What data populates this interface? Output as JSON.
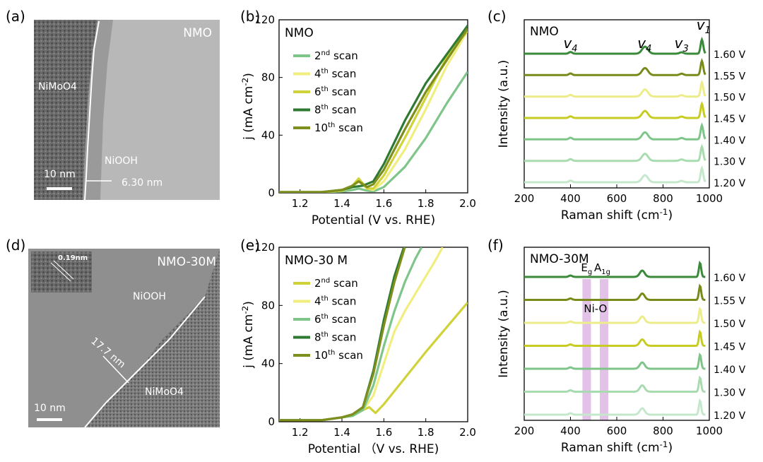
{
  "panels": {
    "a": {
      "label": "(a)",
      "title": "NMO",
      "scale_bar": "10 nm",
      "labels": [
        "NiMoO4",
        "NiOOH",
        "6.30 nm"
      ]
    },
    "d": {
      "label": "(d)",
      "title": "NMO-30M",
      "scale_bar": "10 nm",
      "inset_label": "0.19nm",
      "labels": [
        "NiOOH",
        "17.7 nm",
        "NiMoO4"
      ]
    }
  },
  "colors": {
    "c2": "#7fc58a",
    "c4": "#f0ee7e",
    "c6": "#d0d23a",
    "c8": "#2f7a32",
    "c10": "#7f8f1e",
    "c120": "#c5e8cc",
    "c130": "#a8dbb0",
    "c140": "#7fc58a",
    "c145": "#c7cc22",
    "c150": "#ecec8a",
    "c155": "#7a8a1a",
    "c160": "#3a8a3a",
    "band": "#e3c2e8"
  },
  "chart_data": [
    {
      "id": "b",
      "panel_label": "(b)",
      "type": "line",
      "inset_title": "NMO",
      "xlabel": "Potential (V vs. RHE)",
      "ylabel": "j (mA cm-2)",
      "xlim": [
        1.1,
        2.0
      ],
      "ylim": [
        0,
        120
      ],
      "xticks": [
        "1.2",
        "1.4",
        "1.6",
        "1.8",
        "2.0"
      ],
      "yticks": [
        "0",
        "40",
        "80",
        "120"
      ],
      "series": [
        {
          "name": "2nd scan",
          "color": "c2",
          "x": [
            1.1,
            1.3,
            1.4,
            1.45,
            1.48,
            1.52,
            1.55,
            1.6,
            1.7,
            1.8,
            1.9,
            2.0
          ],
          "y": [
            0.5,
            0.5,
            1,
            2,
            3,
            1.5,
            1,
            4,
            18,
            38,
            62,
            84
          ]
        },
        {
          "name": "4th scan",
          "color": "c4",
          "x": [
            1.1,
            1.3,
            1.4,
            1.45,
            1.48,
            1.52,
            1.55,
            1.6,
            1.7,
            1.8,
            1.9,
            1.95,
            2.0
          ],
          "y": [
            0.5,
            0.5,
            1.5,
            4,
            8,
            3,
            2,
            8,
            30,
            58,
            88,
            100,
            113
          ]
        },
        {
          "name": "6th scan",
          "color": "c6",
          "x": [
            1.1,
            1.3,
            1.4,
            1.45,
            1.48,
            1.52,
            1.55,
            1.6,
            1.7,
            1.8,
            1.9,
            1.95,
            2.0
          ],
          "y": [
            0.5,
            0.5,
            1.5,
            5,
            10,
            3,
            3,
            12,
            38,
            66,
            94,
            104,
            112
          ]
        },
        {
          "name": "8th scan",
          "color": "c8",
          "x": [
            1.1,
            1.3,
            1.4,
            1.45,
            1.5,
            1.55,
            1.6,
            1.7,
            1.8,
            1.9,
            2.0
          ],
          "y": [
            0.5,
            0.5,
            2,
            4,
            5,
            8,
            20,
            50,
            76,
            96,
            116
          ]
        },
        {
          "name": "10th scan",
          "color": "c10",
          "x": [
            1.1,
            1.3,
            1.4,
            1.45,
            1.48,
            1.52,
            1.55,
            1.6,
            1.7,
            1.8,
            1.9,
            2.0
          ],
          "y": [
            0.5,
            0.5,
            2,
            5,
            8,
            4,
            6,
            16,
            44,
            70,
            92,
            114
          ]
        }
      ]
    },
    {
      "id": "e",
      "panel_label": "(e)",
      "type": "line",
      "inset_title": "NMO-30 M",
      "xlabel": "Potential （V vs. RHE)",
      "ylabel": "j (mA cm-2)",
      "xlim": [
        1.1,
        2.0
      ],
      "ylim": [
        0,
        120
      ],
      "xticks": [
        "1.2",
        "1.4",
        "1.6",
        "1.8",
        "2.0"
      ],
      "yticks": [
        "0",
        "40",
        "80",
        "120"
      ],
      "series": [
        {
          "name": "2nd scan",
          "color": "c6",
          "x": [
            1.1,
            1.3,
            1.4,
            1.45,
            1.5,
            1.53,
            1.56,
            1.6,
            1.7,
            1.8,
            1.9,
            2.0
          ],
          "y": [
            1,
            1,
            3,
            4,
            8,
            10,
            6,
            12,
            30,
            48,
            65,
            82
          ]
        },
        {
          "name": "4th scan",
          "color": "c4",
          "x": [
            1.1,
            1.3,
            1.4,
            1.45,
            1.5,
            1.55,
            1.6,
            1.65,
            1.7,
            1.75,
            1.8,
            1.85,
            1.88
          ],
          "y": [
            1,
            1,
            3,
            4,
            8,
            18,
            40,
            62,
            76,
            88,
            100,
            112,
            120
          ]
        },
        {
          "name": "6th scan",
          "color": "c2",
          "x": [
            1.1,
            1.3,
            1.4,
            1.45,
            1.5,
            1.55,
            1.6,
            1.65,
            1.7,
            1.75,
            1.78
          ],
          "y": [
            1,
            1,
            3,
            4,
            8,
            25,
            52,
            76,
            96,
            112,
            120
          ]
        },
        {
          "name": "8th scan",
          "color": "c8",
          "x": [
            1.1,
            1.3,
            1.4,
            1.45,
            1.5,
            1.55,
            1.6,
            1.65,
            1.7
          ],
          "y": [
            1,
            1,
            3,
            5,
            10,
            35,
            70,
            100,
            122
          ]
        },
        {
          "name": "10th scan",
          "color": "c10",
          "x": [
            1.1,
            1.3,
            1.4,
            1.45,
            1.5,
            1.55,
            1.6,
            1.65,
            1.7
          ],
          "y": [
            1,
            1,
            3,
            5,
            10,
            33,
            66,
            96,
            120
          ]
        }
      ]
    },
    {
      "id": "c",
      "panel_label": "(c)",
      "type": "line",
      "inset_title": "NMO",
      "xlabel": "Raman shift (cm-1)",
      "ylabel": "Intensity (a.u.)",
      "xlim": [
        200,
        1000
      ],
      "xticks": [
        "200",
        "400",
        "600",
        "800",
        "1000"
      ],
      "peak_labels": [
        {
          "text": "v4",
          "x": 400
        },
        {
          "text": "v4",
          "x": 720
        },
        {
          "text": "v3",
          "x": 880
        },
        {
          "text": "v1",
          "x": 975
        }
      ],
      "peaks": [
        {
          "center": 400,
          "width": 10,
          "scale": 0.12
        },
        {
          "center": 722,
          "width": 18,
          "scale": 0.5
        },
        {
          "center": 880,
          "width": 12,
          "scale": 0.1
        },
        {
          "center": 968,
          "width": 8,
          "scale": 1.0
        }
      ],
      "series": [
        {
          "name": "1.60 V",
          "color": "c160",
          "amp": 1.0
        },
        {
          "name": "1.55 V",
          "color": "c155",
          "amp": 1.0
        },
        {
          "name": "1.50 V",
          "color": "c150",
          "amp": 1.0
        },
        {
          "name": "1.45 V",
          "color": "c145",
          "amp": 1.0
        },
        {
          "name": "1.40 V",
          "color": "c140",
          "amp": 1.0
        },
        {
          "name": "1.30 V",
          "color": "c130",
          "amp": 1.0
        },
        {
          "name": "1.20 V",
          "color": "c120",
          "amp": 1.0
        }
      ]
    },
    {
      "id": "f",
      "panel_label": "(f)",
      "type": "line",
      "inset_title": "NMO-30M",
      "xlabel": "Raman shift (cm-1)",
      "ylabel": "Intensity (a.u.)",
      "xlim": [
        200,
        1000
      ],
      "xticks": [
        "200",
        "400",
        "600",
        "800",
        "1000"
      ],
      "annotations": [
        "Eg",
        "A1g",
        "Ni-O"
      ],
      "bands": [
        470,
        545
      ],
      "peaks": [
        {
          "center": 400,
          "width": 10,
          "scale": 0.1
        },
        {
          "center": 710,
          "width": 15,
          "scale": 0.45
        },
        {
          "center": 960,
          "width": 7,
          "scale": 1.0
        }
      ],
      "series": [
        {
          "name": "1.60 V",
          "color": "c160",
          "amp": 1.0
        },
        {
          "name": "1.55 V",
          "color": "c155",
          "amp": 1.0
        },
        {
          "name": "1.50 V",
          "color": "c150",
          "amp": 1.0
        },
        {
          "name": "1.45 V",
          "color": "c145",
          "amp": 1.0
        },
        {
          "name": "1.40 V",
          "color": "c140",
          "amp": 1.0
        },
        {
          "name": "1.30 V",
          "color": "c130",
          "amp": 1.0
        },
        {
          "name": "1.20 V",
          "color": "c120",
          "amp": 1.0
        }
      ]
    }
  ]
}
